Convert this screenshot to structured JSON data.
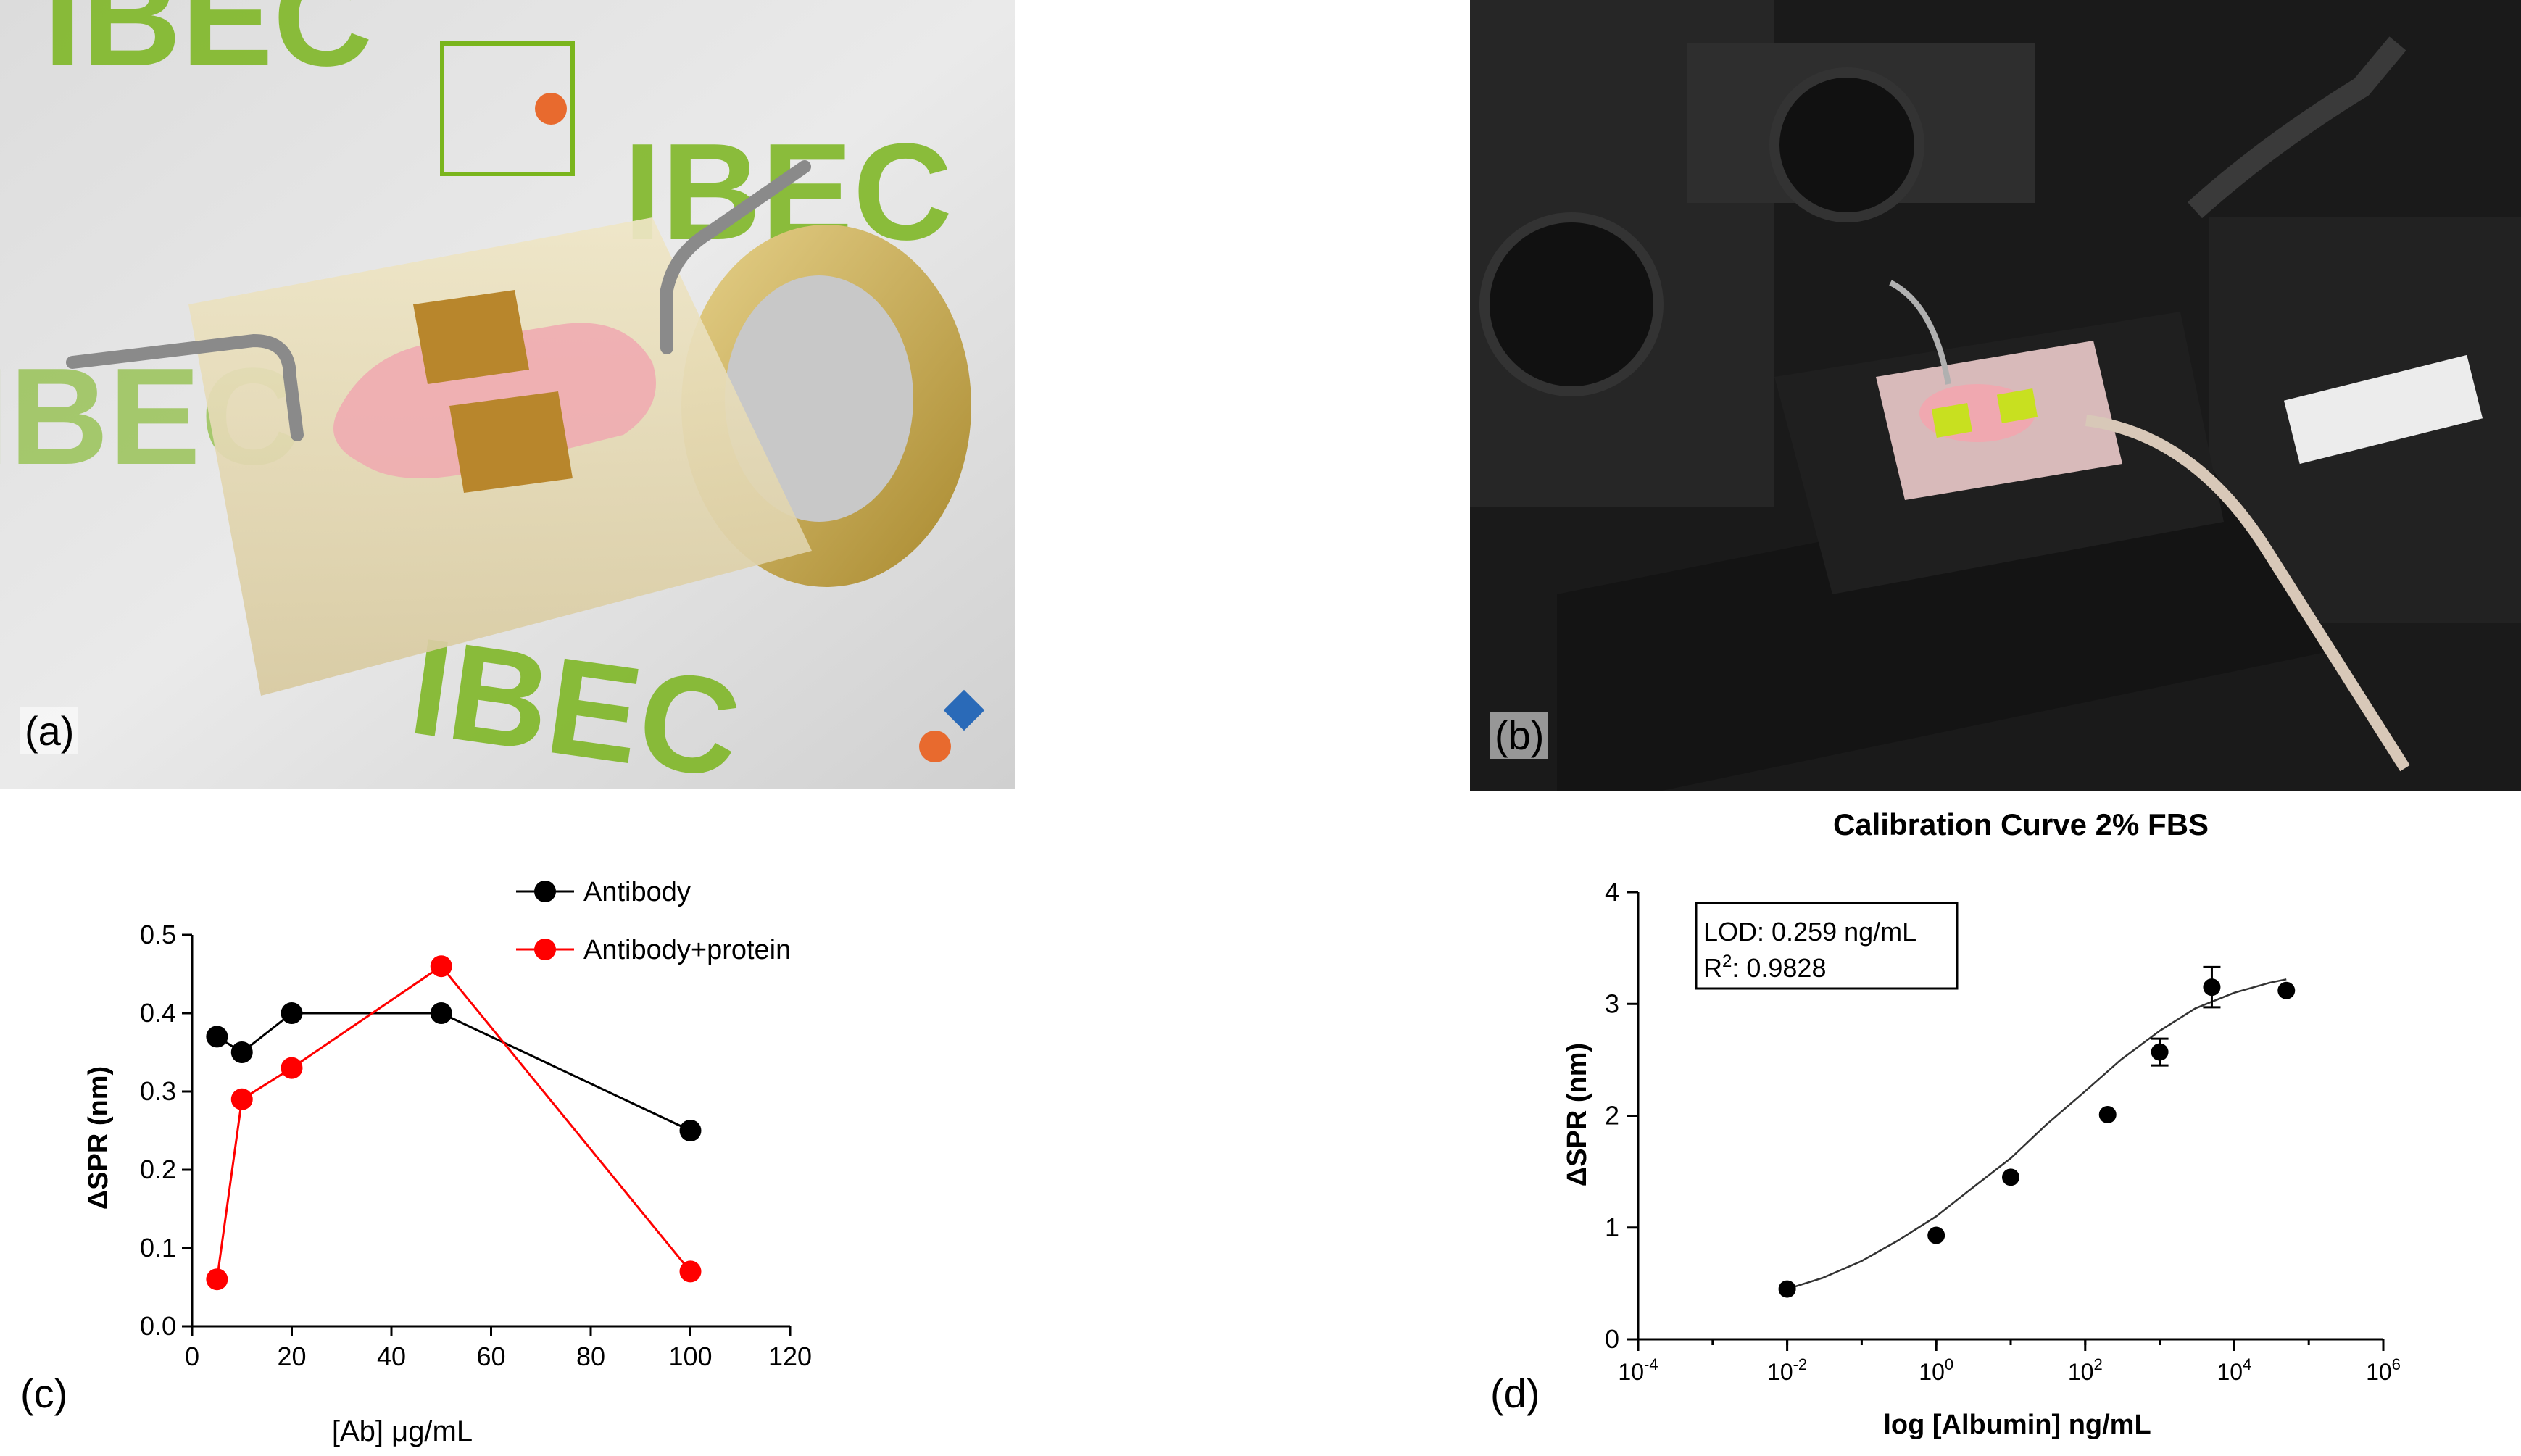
{
  "panels": {
    "a": {
      "label": "(a)"
    },
    "b": {
      "label": "(b)"
    },
    "c": {
      "label": "(c)"
    },
    "d": {
      "label": "(d)"
    }
  },
  "photo_a": {
    "logo_text": "IBEC",
    "logo_color": "#7ab51d",
    "chip_color": "#f0a8b0",
    "chip_pad_color": "#b8862c"
  },
  "photo_b": {
    "bg_color": "#1a1a1a",
    "chip_color": "#e8c8c8",
    "pad_color": "#c8e020"
  },
  "chart_data": [
    {
      "type": "line",
      "xlabel": "[Ab] μg/mL",
      "ylabel": "ΔSPR (nm)",
      "xlim": [
        0,
        120
      ],
      "ylim": [
        0,
        0.5
      ],
      "xticks": [
        "0",
        "20",
        "40",
        "60",
        "80",
        "100",
        "120"
      ],
      "yticks": [
        "0.0",
        "0.1",
        "0.2",
        "0.3",
        "0.4",
        "0.5"
      ],
      "legend": "top-right",
      "series": [
        {
          "name": "Antibody",
          "color": "#000000",
          "x": [
            5,
            10,
            20,
            50,
            100
          ],
          "y": [
            0.37,
            0.35,
            0.4,
            0.4,
            0.25
          ]
        },
        {
          "name": "Antibody+protein",
          "color": "#ff0000",
          "x": [
            5,
            10,
            20,
            50,
            100
          ],
          "y": [
            0.06,
            0.29,
            0.33,
            0.46,
            0.07
          ]
        }
      ]
    },
    {
      "type": "scatter",
      "title": "Calibration Curve 2% FBS",
      "xlabel": "log [Albumin] ng/mL",
      "ylabel": "ΔSPR (nm)",
      "xscale": "log",
      "xlim_exp": [
        -4,
        6
      ],
      "ylim": [
        0,
        4
      ],
      "xtick_base": "10",
      "xtick_exponents": [
        "-4",
        "-2",
        "0",
        "2",
        "4",
        "6"
      ],
      "yticks": [
        "0",
        "1",
        "2",
        "3",
        "4"
      ],
      "annotation": {
        "lod": "LOD: 0.259 ng/mL",
        "r2_prefix": "R",
        "r2_sup": "2",
        "r2_value": ": 0.9828"
      },
      "points": {
        "x": [
          0.01,
          1,
          10,
          200,
          1000,
          5000,
          50000
        ],
        "y": [
          0.45,
          0.93,
          1.45,
          2.01,
          2.57,
          3.15,
          3.12
        ],
        "err": [
          0,
          0,
          0,
          0,
          0.12,
          0.18,
          0
        ]
      },
      "fit_curve": {
        "x": [
          0.01,
          0.03,
          0.1,
          0.3,
          1,
          3,
          10,
          30,
          100,
          300,
          1000,
          3000,
          10000,
          30000,
          50000
        ],
        "y": [
          0.45,
          0.55,
          0.7,
          0.88,
          1.1,
          1.35,
          1.62,
          1.92,
          2.22,
          2.5,
          2.76,
          2.96,
          3.1,
          3.19,
          3.22
        ]
      }
    }
  ]
}
